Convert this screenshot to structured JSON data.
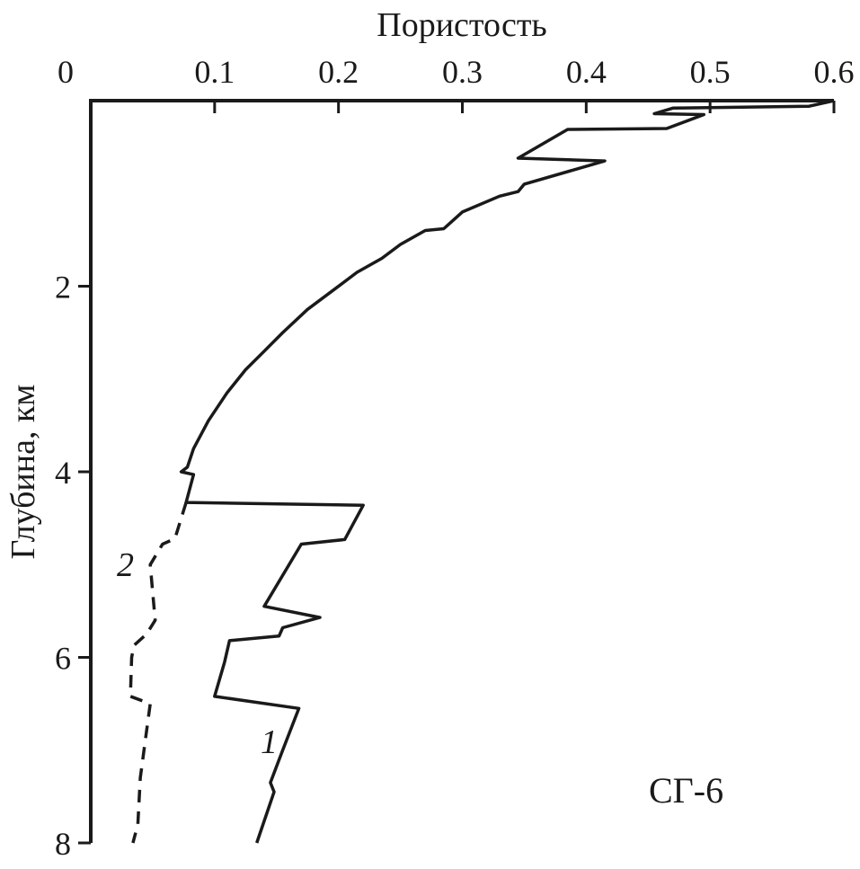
{
  "chart_data": {
    "type": "line",
    "title": "",
    "xlabel": "Пористость",
    "ylabel": "Глубина, км",
    "xlim": [
      0,
      0.6
    ],
    "ylim": [
      0,
      8
    ],
    "y_inverted": true,
    "x_axis_position": "top",
    "grid": false,
    "x_ticks": [
      "0",
      "0.1",
      "0.2",
      "0.3",
      "0.4",
      "0.5",
      "0.6"
    ],
    "x_tick_values": [
      0,
      0.1,
      0.2,
      0.3,
      0.4,
      0.5,
      0.6
    ],
    "y_ticks": [
      "2",
      "4",
      "6",
      "8"
    ],
    "y_tick_values": [
      2,
      4,
      6,
      8
    ],
    "annotation": "СГ-6",
    "series": [
      {
        "name": "1",
        "style": "solid",
        "points": [
          [
            0.6,
            0.0
          ],
          [
            0.58,
            0.06
          ],
          [
            0.47,
            0.08
          ],
          [
            0.455,
            0.14
          ],
          [
            0.495,
            0.15
          ],
          [
            0.465,
            0.3
          ],
          [
            0.385,
            0.31
          ],
          [
            0.345,
            0.62
          ],
          [
            0.415,
            0.65
          ],
          [
            0.35,
            0.9
          ],
          [
            0.345,
            0.98
          ],
          [
            0.33,
            1.03
          ],
          [
            0.3,
            1.2
          ],
          [
            0.285,
            1.38
          ],
          [
            0.27,
            1.4
          ],
          [
            0.25,
            1.55
          ],
          [
            0.235,
            1.7
          ],
          [
            0.215,
            1.85
          ],
          [
            0.195,
            2.05
          ],
          [
            0.175,
            2.25
          ],
          [
            0.155,
            2.5
          ],
          [
            0.14,
            2.7
          ],
          [
            0.125,
            2.9
          ],
          [
            0.11,
            3.15
          ],
          [
            0.095,
            3.45
          ],
          [
            0.083,
            3.75
          ],
          [
            0.078,
            3.95
          ],
          [
            0.073,
            4.0
          ],
          [
            0.083,
            4.03
          ],
          [
            0.077,
            4.33
          ],
          [
            0.22,
            4.36
          ],
          [
            0.205,
            4.73
          ],
          [
            0.17,
            4.78
          ],
          [
            0.14,
            5.45
          ],
          [
            0.185,
            5.57
          ],
          [
            0.155,
            5.68
          ],
          [
            0.152,
            5.77
          ],
          [
            0.112,
            5.82
          ],
          [
            0.108,
            6.05
          ],
          [
            0.1,
            6.42
          ],
          [
            0.168,
            6.55
          ],
          [
            0.155,
            7.0
          ],
          [
            0.145,
            7.35
          ],
          [
            0.148,
            7.45
          ],
          [
            0.134,
            8.0
          ]
        ]
      },
      {
        "name": "2",
        "style": "dashed",
        "points": [
          [
            0.077,
            4.33
          ],
          [
            0.068,
            4.72
          ],
          [
            0.058,
            4.78
          ],
          [
            0.048,
            5.0
          ],
          [
            0.05,
            5.3
          ],
          [
            0.052,
            5.6
          ],
          [
            0.045,
            5.75
          ],
          [
            0.035,
            5.87
          ],
          [
            0.033,
            6.0
          ],
          [
            0.032,
            6.42
          ],
          [
            0.048,
            6.5
          ],
          [
            0.045,
            6.8
          ],
          [
            0.04,
            7.3
          ],
          [
            0.038,
            7.8
          ],
          [
            0.034,
            8.0
          ]
        ]
      }
    ]
  }
}
